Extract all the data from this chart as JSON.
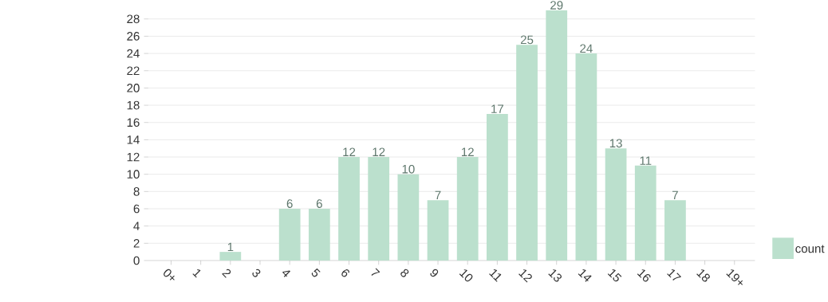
{
  "chart_data": {
    "type": "bar",
    "categories": [
      "0+",
      "1",
      "2",
      "3",
      "4",
      "5",
      "6",
      "7",
      "8",
      "9",
      "10",
      "11",
      "12",
      "13",
      "14",
      "15",
      "16",
      "17",
      "18",
      "19+"
    ],
    "series": [
      {
        "name": "count",
        "color": "#bbe0cd",
        "values": [
          0,
          0,
          1,
          0,
          6,
          6,
          12,
          12,
          10,
          7,
          12,
          17,
          25,
          29,
          24,
          13,
          11,
          7,
          0,
          0
        ]
      }
    ],
    "value_labels": [
      null,
      null,
      "1",
      null,
      "6",
      "6",
      "12",
      "12",
      "10",
      "7",
      "12",
      "17",
      "25",
      "29",
      "24",
      "13",
      "11",
      "7",
      null,
      null
    ],
    "ylim": [
      0,
      29
    ],
    "yticks": [
      0,
      2,
      4,
      6,
      8,
      10,
      12,
      14,
      16,
      18,
      20,
      22,
      24,
      26,
      28
    ],
    "grid": "y",
    "legend": "right"
  }
}
